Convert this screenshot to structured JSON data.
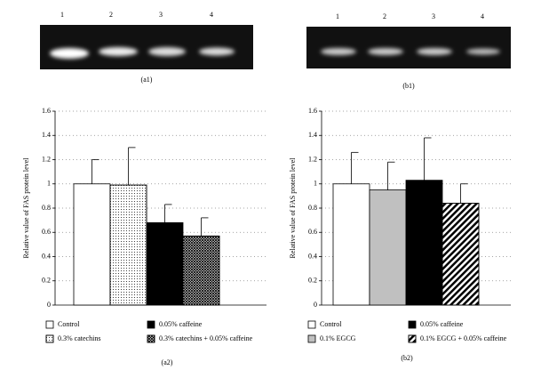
{
  "gels": [
    {
      "lanes": [
        "1",
        "2",
        "3",
        "4"
      ],
      "caption": "(a1)"
    },
    {
      "lanes": [
        "1",
        "2",
        "3",
        "4"
      ],
      "caption": "(b1)"
    }
  ],
  "chart_data": [
    {
      "type": "bar",
      "ylabel": "Relative value of FAS protein level",
      "caption": "(a2)",
      "ylim": [
        0,
        1.6
      ],
      "yticks": [
        0,
        0.2,
        0.4,
        0.6,
        0.8,
        1,
        1.2,
        1.4,
        1.6
      ],
      "grid": true,
      "series": [
        {
          "name": "Control",
          "color": "#ffffff",
          "pattern": "none",
          "values": [
            1.0
          ],
          "errors": [
            0.2
          ]
        },
        {
          "name": "0.3% catechins",
          "color": "#ffffff",
          "pattern": "dots",
          "values": [
            0.99
          ],
          "errors": [
            0.31
          ]
        },
        {
          "name": "0.05% caffeine",
          "color": "#000000",
          "pattern": "none",
          "values": [
            0.68
          ],
          "errors": [
            0.15
          ]
        },
        {
          "name": "0.3% catechins + 0.05% caffeine",
          "color": "#ffffff",
          "pattern": "crosshatch",
          "values": [
            0.57
          ],
          "errors": [
            0.15
          ]
        }
      ]
    },
    {
      "type": "bar",
      "ylabel": "Relative value of FAS protein level",
      "caption": "(b2)",
      "ylim": [
        0,
        1.6
      ],
      "yticks": [
        0,
        0.2,
        0.4,
        0.6,
        0.8,
        1,
        1.2,
        1.4,
        1.6
      ],
      "grid": true,
      "series": [
        {
          "name": "Control",
          "color": "#ffffff",
          "pattern": "none",
          "values": [
            1.0
          ],
          "errors": [
            0.26
          ]
        },
        {
          "name": "0.1% EGCG",
          "color": "#c0c0c0",
          "pattern": "none",
          "values": [
            0.95
          ],
          "errors": [
            0.23
          ]
        },
        {
          "name": "0.05% caffeine",
          "color": "#000000",
          "pattern": "none",
          "values": [
            1.03
          ],
          "errors": [
            0.35
          ]
        },
        {
          "name": "0.1% EGCG + 0.05% caffeine",
          "color": "#ffffff",
          "pattern": "stripes",
          "values": [
            0.84
          ],
          "errors": [
            0.16
          ]
        }
      ]
    }
  ]
}
